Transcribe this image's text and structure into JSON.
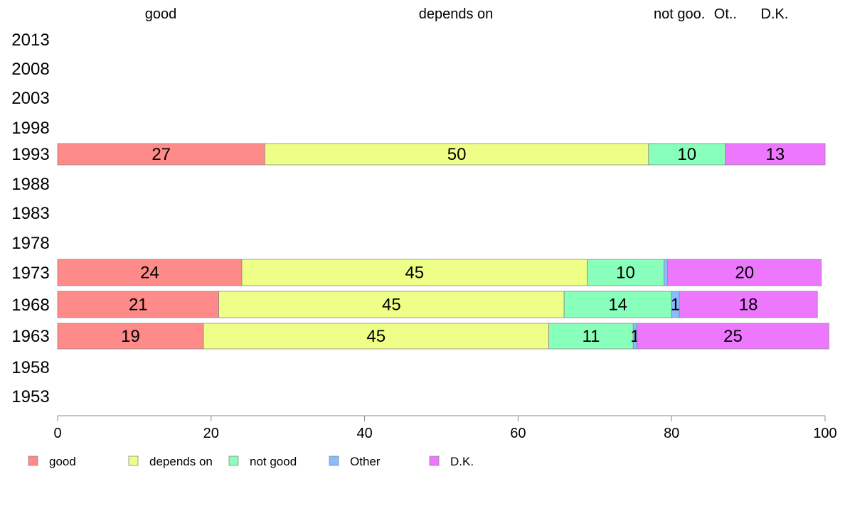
{
  "chart_data": {
    "type": "bar",
    "orientation": "horizontal",
    "stacked": true,
    "categories": [
      "2013",
      "2008",
      "2003",
      "1998",
      "1993",
      "1988",
      "1983",
      "1978",
      "1973",
      "1968",
      "1963",
      "1958",
      "1953"
    ],
    "series": [
      {
        "name": "good",
        "color": "#ff8a8a",
        "values": [
          null,
          null,
          null,
          null,
          27,
          null,
          null,
          null,
          24,
          21,
          19,
          null,
          null
        ],
        "labels": [
          "",
          "",
          "",
          "",
          "27",
          "",
          "",
          "",
          "24",
          "21",
          "19",
          "",
          ""
        ]
      },
      {
        "name": "depends on",
        "color": "#eeff88",
        "values": [
          null,
          null,
          null,
          null,
          50,
          null,
          null,
          null,
          45,
          45,
          45,
          null,
          null
        ],
        "labels": [
          "",
          "",
          "",
          "",
          "50",
          "",
          "",
          "",
          "45",
          "45",
          "45",
          "",
          ""
        ]
      },
      {
        "name": "not good",
        "color": "#88ffbb",
        "values": [
          null,
          null,
          null,
          null,
          10,
          null,
          null,
          null,
          10,
          14,
          11,
          null,
          null
        ],
        "labels": [
          "",
          "",
          "",
          "",
          "10",
          "",
          "",
          "",
          "10",
          "14",
          "11",
          "",
          ""
        ]
      },
      {
        "name": "Other",
        "color": "#88bbff",
        "values": [
          null,
          null,
          null,
          null,
          0,
          null,
          null,
          null,
          0.5,
          1,
          0.5,
          null,
          null
        ],
        "labels": [
          "",
          "",
          "",
          "",
          "",
          "",
          "",
          "",
          "",
          "1",
          "1",
          "",
          ""
        ]
      },
      {
        "name": "D.K.",
        "color": "#ee77ff",
        "values": [
          null,
          null,
          null,
          null,
          13,
          null,
          null,
          null,
          20,
          18,
          25,
          null,
          null
        ],
        "labels": [
          "",
          "",
          "",
          "",
          "13",
          "",
          "",
          "",
          "20",
          "18",
          "25",
          "",
          ""
        ]
      }
    ],
    "column_headers": [
      "good",
      "depends on",
      "not goo.",
      "Ot..",
      "D.K."
    ],
    "xlim": [
      0,
      100
    ],
    "xticks": [
      0,
      20,
      40,
      60,
      80,
      100
    ],
    "legend": {
      "position": "bottom-left",
      "entries": [
        "good",
        "depends on",
        "not good",
        "Other",
        "D.K."
      ]
    },
    "grid": false
  }
}
